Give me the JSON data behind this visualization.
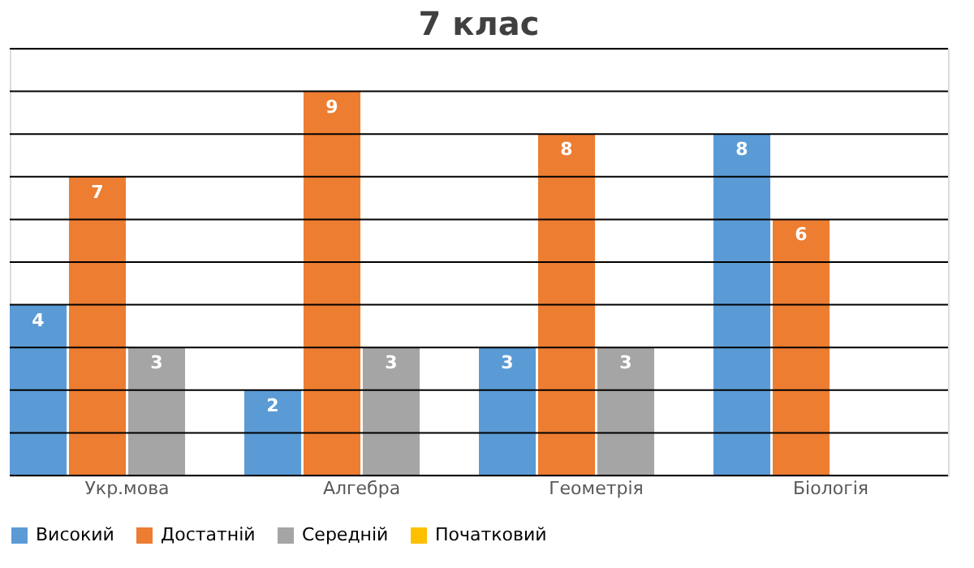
{
  "chart_data": {
    "type": "bar",
    "title": "7 клас",
    "categories": [
      "Укр.мова",
      "Алгебра",
      "Геометрія",
      "Біологія"
    ],
    "series": [
      {
        "name": "Високий",
        "color": "#5b9bd5",
        "values": [
          4,
          2,
          3,
          8
        ],
        "value_labels": [
          "4",
          "2",
          "3",
          "8"
        ]
      },
      {
        "name": "Достатній",
        "color": "#ed7d31",
        "values": [
          7,
          9,
          8,
          6
        ],
        "value_labels": [
          "7",
          "9",
          "8",
          "6"
        ]
      },
      {
        "name": "Середній",
        "color": "#a5a5a5",
        "values": [
          3,
          3,
          3,
          0
        ],
        "value_labels": [
          "3",
          "3",
          "3",
          null
        ]
      },
      {
        "name": "Початковий",
        "color": "#ffc000",
        "values": [
          0,
          0,
          0,
          0
        ],
        "value_labels": [
          null,
          null,
          null,
          null
        ]
      }
    ],
    "ylim": [
      0,
      10
    ],
    "yticks": [
      {
        "value": 0,
        "label": null
      },
      {
        "value": 1,
        "label": null
      },
      {
        "value": 2,
        "label": null
      },
      {
        "value": 3,
        "label": null
      },
      {
        "value": 4,
        "label": null
      },
      {
        "value": 5,
        "label": null
      },
      {
        "value": 6,
        "label": null
      },
      {
        "value": 7,
        "label": null
      },
      {
        "value": 8,
        "label": null
      },
      {
        "value": 9,
        "label": null
      },
      {
        "value": 10,
        "label": null
      }
    ],
    "tick_labels": "x",
    "grid": "y",
    "legend": "bottom"
  }
}
